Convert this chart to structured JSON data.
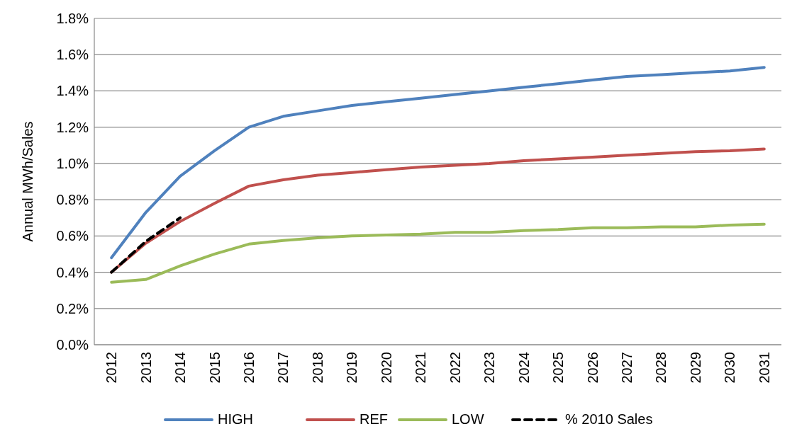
{
  "chart_data": {
    "type": "line",
    "ylabel": "Annual MWh/Sales",
    "categories": [
      "2012",
      "2013",
      "2014",
      "2015",
      "2016",
      "2017",
      "2018",
      "2019",
      "2020",
      "2021",
      "2022",
      "2023",
      "2024",
      "2025",
      "2026",
      "2027",
      "2028",
      "2029",
      "2030",
      "2031"
    ],
    "series": [
      {
        "name": "HIGH",
        "color": "#4f81bd",
        "values": [
          0.48,
          0.73,
          0.93,
          1.07,
          1.2,
          1.26,
          1.29,
          1.32,
          1.34,
          1.36,
          1.38,
          1.4,
          1.42,
          1.44,
          1.46,
          1.48,
          1.49,
          1.5,
          1.51,
          1.53
        ]
      },
      {
        "name": "REF",
        "color": "#c0504d",
        "values": [
          0.4,
          0.56,
          0.68,
          0.78,
          0.875,
          0.91,
          0.935,
          0.95,
          0.965,
          0.98,
          0.99,
          1.0,
          1.015,
          1.025,
          1.035,
          1.045,
          1.055,
          1.065,
          1.07,
          1.08
        ]
      },
      {
        "name": "LOW",
        "color": "#9bbb59",
        "values": [
          0.345,
          0.36,
          0.435,
          0.5,
          0.555,
          0.575,
          0.59,
          0.6,
          0.605,
          0.61,
          0.62,
          0.62,
          0.63,
          0.635,
          0.645,
          0.645,
          0.65,
          0.65,
          0.66,
          0.665
        ]
      },
      {
        "name": "% 2010 Sales",
        "color": "#000000",
        "line_style": "dashed",
        "values": [
          0.4,
          0.57,
          0.7,
          null,
          null,
          null,
          null,
          null,
          null,
          null,
          null,
          null,
          null,
          null,
          null,
          null,
          null,
          null,
          null,
          null
        ]
      }
    ],
    "ylim": [
      0,
      1.8
    ],
    "yticks": [
      {
        "value": 0,
        "label": "0.0%"
      },
      {
        "value": 0.2,
        "label": "0.2%"
      },
      {
        "value": 0.4,
        "label": "0.4%"
      },
      {
        "value": 0.6,
        "label": "0.6%"
      },
      {
        "value": 0.8,
        "label": "0.8%"
      },
      {
        "value": 1.0,
        "label": "1.0%"
      },
      {
        "value": 1.2,
        "label": "1.2%"
      },
      {
        "value": 1.4,
        "label": "1.4%"
      },
      {
        "value": 1.6,
        "label": "1.6%"
      },
      {
        "value": 1.8,
        "label": "1.8%"
      }
    ],
    "grid": "y",
    "legend": "bottom",
    "marker": "none"
  }
}
